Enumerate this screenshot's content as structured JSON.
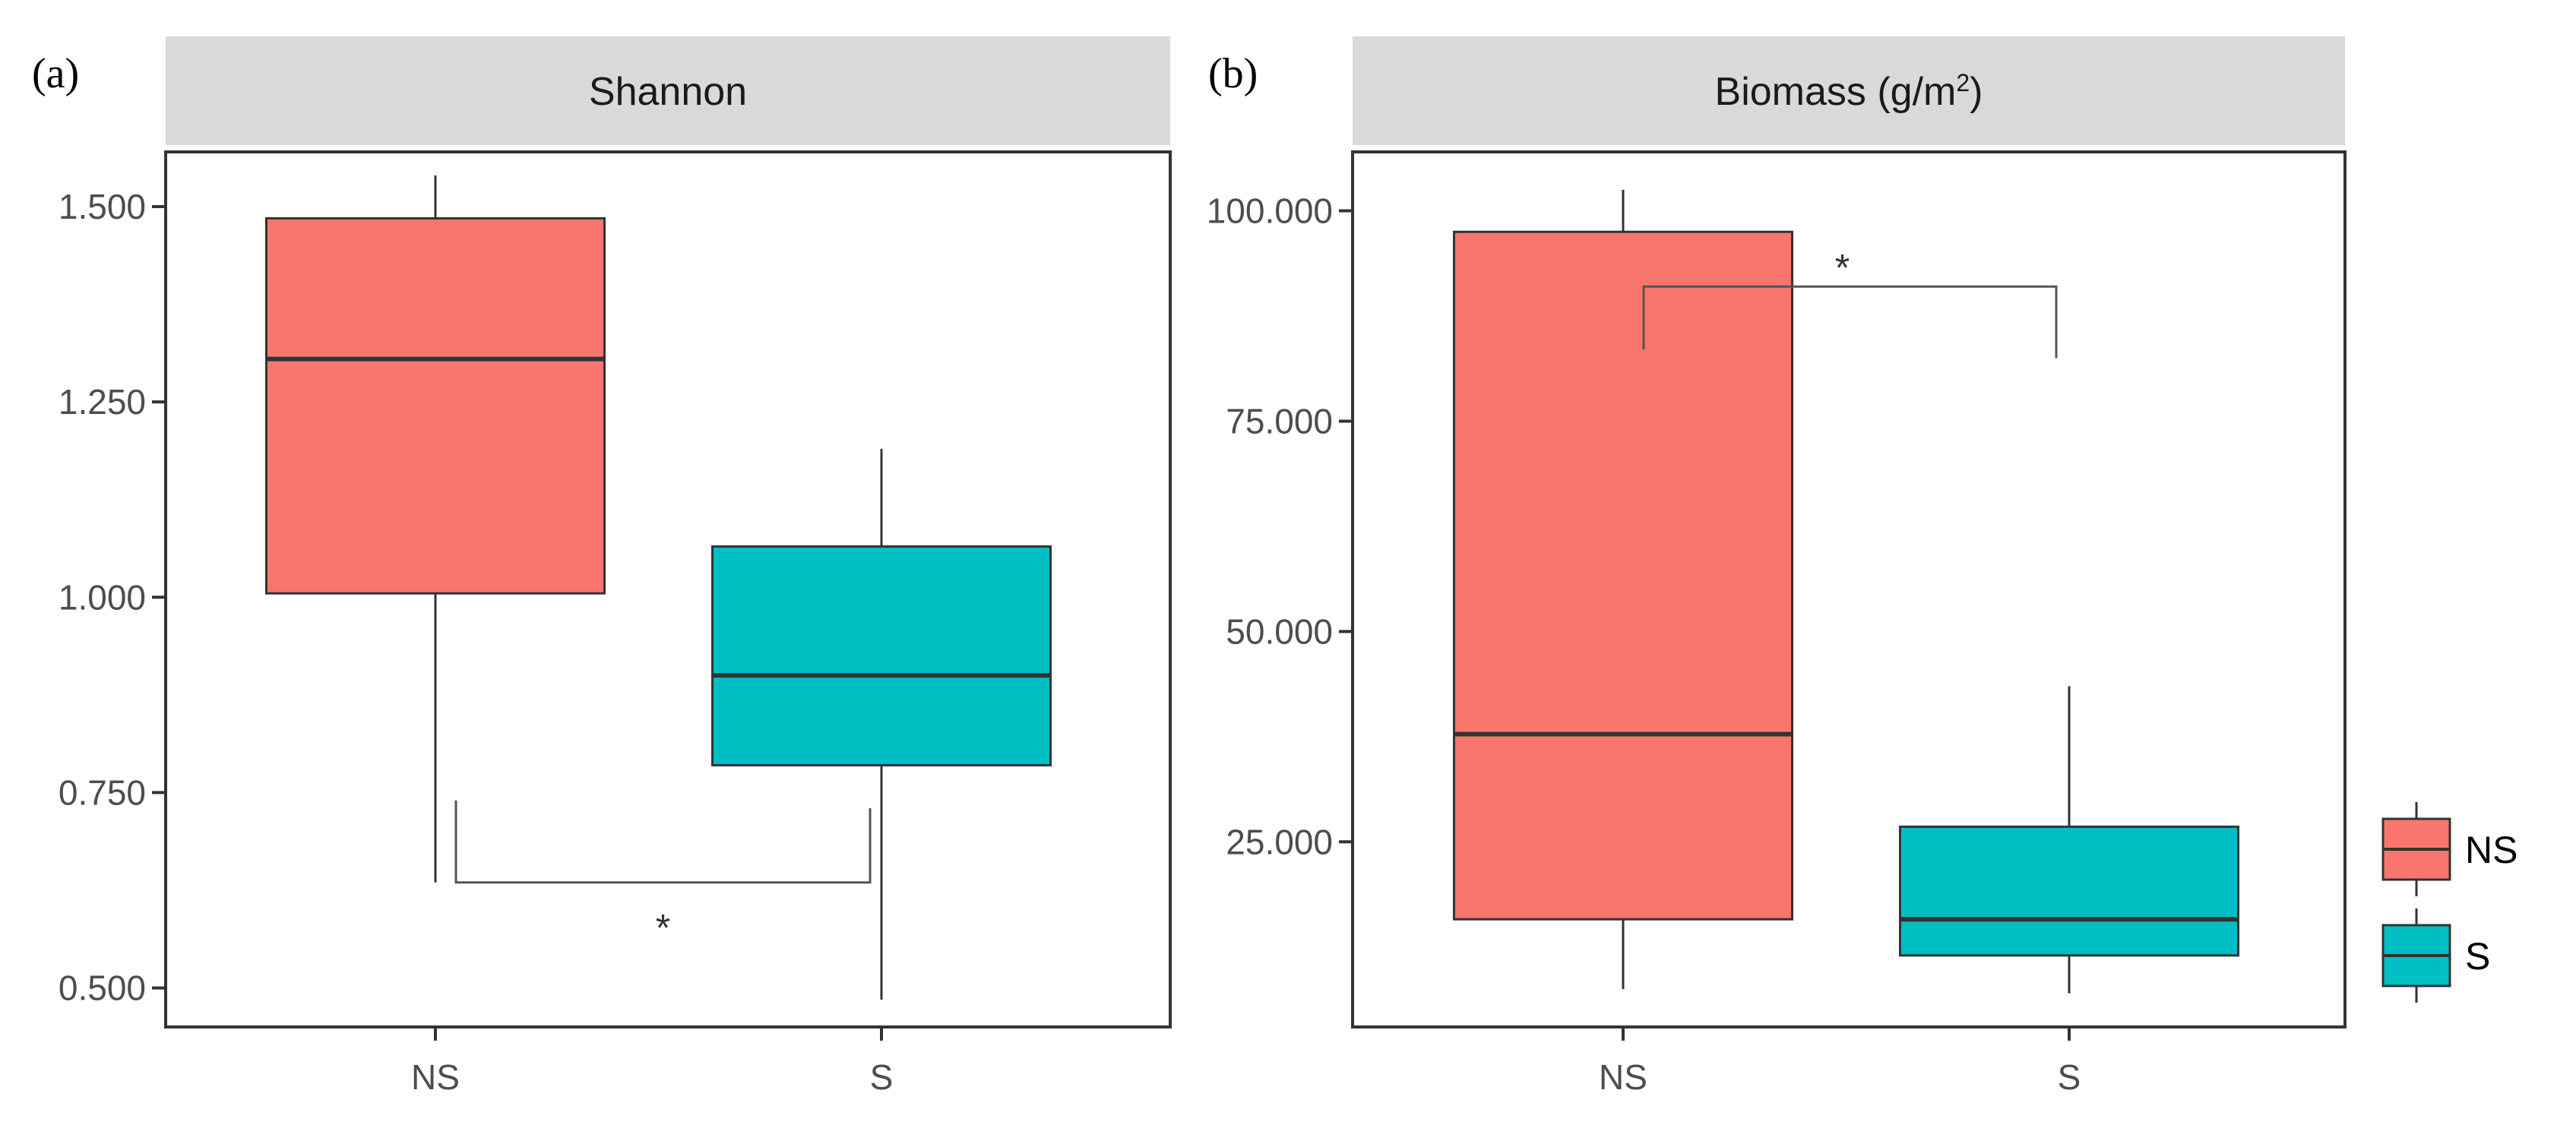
{
  "chart_data": [
    {
      "type": "box",
      "panel_label": "(a)",
      "title": "Shannon",
      "title_sup": "",
      "title_tail": "",
      "categories": [
        "NS",
        "S"
      ],
      "ylim": [
        0.45,
        1.57
      ],
      "yticks": [
        0.5,
        0.75,
        1.0,
        1.25,
        1.5
      ],
      "ytick_labels": [
        "0.500",
        "0.750",
        "1.000",
        "1.250",
        "1.500"
      ],
      "boxes": [
        {
          "name": "NS",
          "min": 0.635,
          "q1": 1.005,
          "median": 1.305,
          "q3": 1.485,
          "max": 1.54,
          "color": "#F8766D"
        },
        {
          "name": "S",
          "min": 0.485,
          "q1": 0.785,
          "median": 0.9,
          "q3": 1.065,
          "max": 1.19,
          "color": "#00BFC4"
        }
      ],
      "significance": {
        "label": "*",
        "placement": "below",
        "left_y": 0.74,
        "bar_y": 0.635,
        "right_y": 0.73,
        "label_y": 0.58
      }
    },
    {
      "type": "box",
      "panel_label": "(b)",
      "title": "Biomass (g/m",
      "title_sup": "2",
      "title_tail": ")",
      "categories": [
        "NS",
        "S"
      ],
      "ylim": [
        3000,
        107000
      ],
      "yticks": [
        25000,
        50000,
        75000,
        100000
      ],
      "ytick_labels": [
        "25.000",
        "50.000",
        "75.000",
        "100.000"
      ],
      "boxes": [
        {
          "name": "NS",
          "min": 7500,
          "q1": 15800,
          "median": 37800,
          "q3": 97500,
          "max": 102500,
          "color": "#F8766D"
        },
        {
          "name": "S",
          "min": 7000,
          "q1": 11500,
          "median": 15800,
          "q3": 26800,
          "max": 43500,
          "color": "#00BFC4"
        }
      ],
      "significance": {
        "label": "*",
        "placement": "above",
        "left_y": 83500,
        "bar_y": 91000,
        "right_y": 82500,
        "label_y": 93500
      }
    }
  ],
  "legend": {
    "items": [
      {
        "label": "NS",
        "color": "#F8766D"
      },
      {
        "label": "S",
        "color": "#00BFC4"
      }
    ]
  },
  "colors": {
    "strip_bg": "#D9D9D9",
    "panel_border": "#333333",
    "median_line": "#333333"
  }
}
